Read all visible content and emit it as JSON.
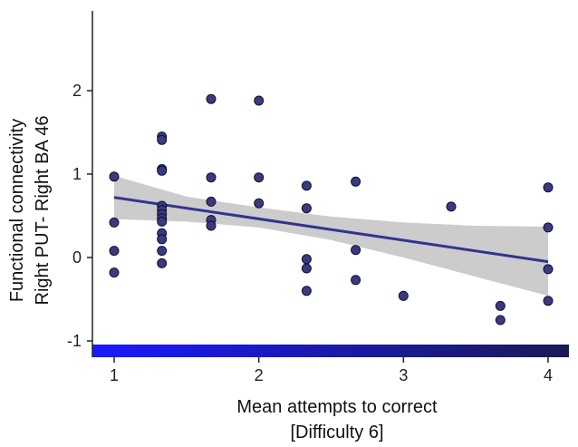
{
  "chart_data": {
    "type": "scatter",
    "title": "",
    "xlabel": [
      "Mean attempts to correct",
      "[Difficulty 6]"
    ],
    "ylabel": [
      "Functional connectivity",
      "Right PUT- Right BA 46"
    ],
    "xlim": [
      0.85,
      4.15
    ],
    "ylim": [
      -1.1,
      2.8
    ],
    "x_ticks": [
      1,
      2,
      3,
      4
    ],
    "y_ticks": [
      -1,
      0,
      1,
      2
    ],
    "grid": false,
    "points": [
      {
        "x": 1.0,
        "y": 0.97
      },
      {
        "x": 1.0,
        "y": 0.42
      },
      {
        "x": 1.0,
        "y": 0.08
      },
      {
        "x": 1.0,
        "y": -0.18
      },
      {
        "x": 1.33,
        "y": 1.45
      },
      {
        "x": 1.33,
        "y": 1.41
      },
      {
        "x": 1.33,
        "y": 1.06
      },
      {
        "x": 1.33,
        "y": 1.04
      },
      {
        "x": 1.33,
        "y": 0.62
      },
      {
        "x": 1.33,
        "y": 0.57
      },
      {
        "x": 1.33,
        "y": 0.52
      },
      {
        "x": 1.33,
        "y": 0.47
      },
      {
        "x": 1.33,
        "y": 0.43
      },
      {
        "x": 1.33,
        "y": 0.29
      },
      {
        "x": 1.33,
        "y": 0.22
      },
      {
        "x": 1.33,
        "y": 0.08
      },
      {
        "x": 1.33,
        "y": -0.07
      },
      {
        "x": 1.67,
        "y": 1.9
      },
      {
        "x": 1.67,
        "y": 0.96
      },
      {
        "x": 1.67,
        "y": 0.67
      },
      {
        "x": 1.67,
        "y": 0.45
      },
      {
        "x": 1.67,
        "y": 0.38
      },
      {
        "x": 2.0,
        "y": 1.88
      },
      {
        "x": 2.0,
        "y": 0.96
      },
      {
        "x": 2.0,
        "y": 0.65
      },
      {
        "x": 2.33,
        "y": 0.86
      },
      {
        "x": 2.33,
        "y": 0.59
      },
      {
        "x": 2.33,
        "y": -0.02
      },
      {
        "x": 2.33,
        "y": -0.13
      },
      {
        "x": 2.33,
        "y": -0.4
      },
      {
        "x": 2.67,
        "y": 0.91
      },
      {
        "x": 2.67,
        "y": 0.09
      },
      {
        "x": 2.67,
        "y": -0.27
      },
      {
        "x": 3.0,
        "y": -0.46
      },
      {
        "x": 3.33,
        "y": 0.61
      },
      {
        "x": 3.67,
        "y": -0.58
      },
      {
        "x": 3.67,
        "y": -0.75
      },
      {
        "x": 4.0,
        "y": 0.84
      },
      {
        "x": 4.0,
        "y": 0.36
      },
      {
        "x": 4.0,
        "y": -0.14
      },
      {
        "x": 4.0,
        "y": -0.52
      }
    ],
    "regression": {
      "x": [
        1.0,
        4.0
      ],
      "y": [
        0.72,
        -0.05
      ]
    },
    "confidence_band": {
      "x": [
        1.0,
        1.5,
        2.0,
        2.5,
        3.0,
        3.5,
        4.0
      ],
      "lower": [
        0.46,
        0.43,
        0.36,
        0.21,
        0.0,
        -0.23,
        -0.46
      ],
      "upper": [
        0.98,
        0.73,
        0.6,
        0.49,
        0.42,
        0.38,
        0.37
      ]
    },
    "colors": {
      "point_fill": "#3a3a80",
      "point_stroke": "#111133",
      "line": "#33338f",
      "band": "#cccccc",
      "colorbar_start": "#1a1aff",
      "colorbar_end": "#1a1a55"
    }
  }
}
